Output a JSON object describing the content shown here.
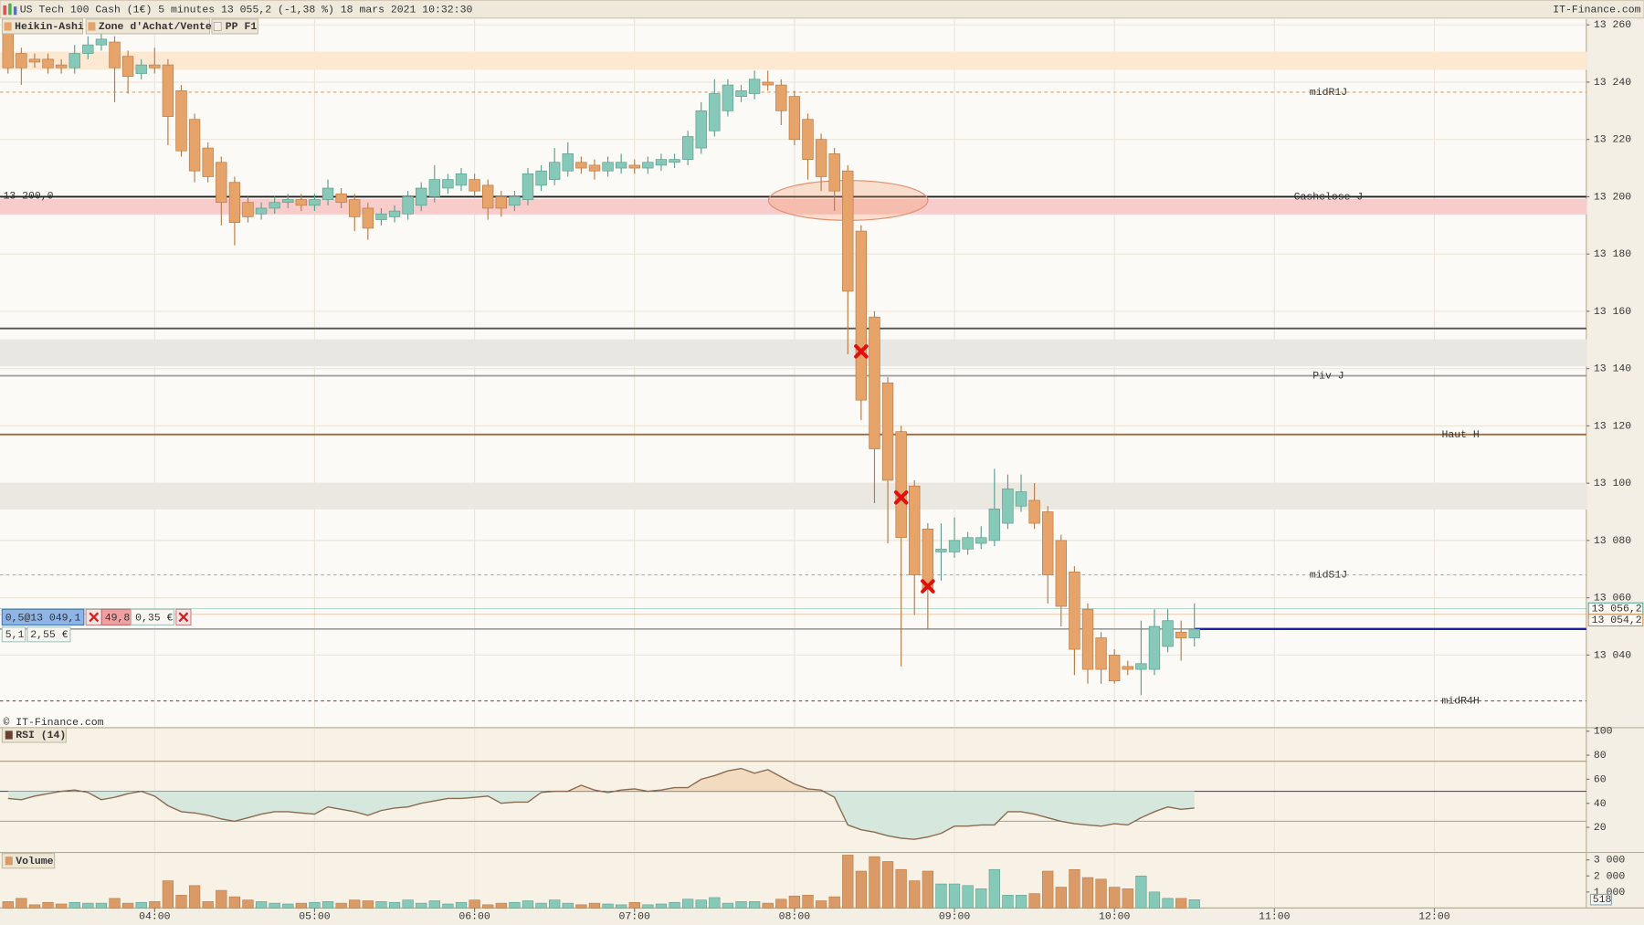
{
  "chart_data": [
    {
      "type": "candlestick",
      "title": "US Tech 100 Cash (1€) 5 minutes 13 055,2 (-1,38 %) 18 mars 2021 10:32:30",
      "source": "IT-Finance.com",
      "copyright": "© IT-Finance.com",
      "indicators": [
        "Heikin-Ashi",
        "Zone d'Achat/Vente",
        "PP F1"
      ],
      "up_color": "#86c9b9",
      "down_color": "#e6a46a",
      "x": [
        185,
        190,
        195,
        200,
        205,
        210,
        215,
        220,
        225,
        230,
        235,
        240,
        245,
        250,
        255,
        260,
        265,
        270,
        275,
        280,
        285,
        290,
        295,
        300,
        305,
        310,
        315,
        320,
        325,
        330,
        335,
        340,
        345,
        350,
        355,
        360,
        365,
        370,
        375,
        380,
        385,
        390,
        395,
        400,
        405,
        410,
        415,
        420,
        425,
        430,
        435,
        440,
        445,
        450,
        455,
        460,
        465,
        470,
        475,
        480,
        485,
        490,
        495,
        500,
        505,
        510,
        515,
        520,
        525,
        530,
        535,
        540,
        545,
        550,
        555,
        560,
        565,
        570,
        575,
        580,
        585,
        590,
        595,
        600,
        605,
        610,
        615,
        620,
        625,
        630
      ],
      "open": [
        13257,
        13250,
        13248,
        13248,
        13246,
        13245,
        13250,
        13253,
        13254,
        13249,
        13243,
        13246,
        13246,
        13237,
        13227,
        13217,
        13212,
        13205,
        13198,
        13194,
        13196,
        13198,
        13199,
        13197,
        13199,
        13201,
        13199,
        13196,
        13192,
        13193,
        13194,
        13197,
        13200,
        13203,
        13204,
        13206,
        13204,
        13200,
        13197,
        13199,
        13204,
        13206,
        13209,
        13212,
        13211,
        13209,
        13210,
        13211,
        13210,
        13211,
        13212,
        13213,
        13217,
        13223,
        13230,
        13235,
        13236,
        13240,
        13239,
        13235,
        13227,
        13220,
        13215,
        13209,
        13188,
        13158,
        13135,
        13118,
        13099,
        13084,
        13076,
        13076,
        13077,
        13079,
        13080,
        13086,
        13092,
        13094,
        13090,
        13080,
        13069,
        13056,
        13046,
        13040,
        13036,
        13035,
        13035,
        13043,
        13048,
        13046
      ],
      "high": [
        13262,
        13252,
        13250,
        13250,
        13248,
        13253,
        13256,
        13257,
        13256,
        13251,
        13248,
        13252,
        13248,
        13239,
        13229,
        13219,
        13214,
        13207,
        13200,
        13198,
        13200,
        13201,
        13201,
        13201,
        13206,
        13203,
        13201,
        13198,
        13196,
        13197,
        13202,
        13205,
        13211,
        13208,
        13210,
        13208,
        13206,
        13202,
        13202,
        13210,
        13211,
        13217,
        13219,
        13214,
        13213,
        13214,
        13215,
        13213,
        13214,
        13215,
        13215,
        13223,
        13233,
        13241,
        13241,
        13239,
        13244,
        13244,
        13241,
        13237,
        13229,
        13222,
        13217,
        13211,
        13190,
        13160,
        13137,
        13120,
        13101,
        13086,
        13086,
        13088,
        13083,
        13085,
        13105,
        13103,
        13103,
        13100,
        13092,
        13082,
        13071,
        13058,
        13048,
        13042,
        13038,
        13052,
        13056,
        13056,
        13052,
        13058
      ],
      "low": [
        13243,
        13239,
        13245,
        13243,
        13243,
        13243,
        13248,
        13251,
        13233,
        13236,
        13241,
        13243,
        13218,
        13214,
        13205,
        13205,
        13190,
        13183,
        13191,
        13192,
        13194,
        13196,
        13195,
        13195,
        13197,
        13196,
        13188,
        13185,
        13190,
        13191,
        13192,
        13195,
        13198,
        13201,
        13202,
        13200,
        13192,
        13193,
        13195,
        13197,
        13202,
        13204,
        13207,
        13208,
        13206,
        13207,
        13208,
        13208,
        13208,
        13209,
        13210,
        13211,
        13215,
        13221,
        13228,
        13233,
        13234,
        13237,
        13225,
        13218,
        13206,
        13202,
        13195,
        13145,
        13122,
        13093,
        13079,
        13036,
        13054,
        13049,
        13066,
        13074,
        13075,
        13077,
        13078,
        13084,
        13090,
        13084,
        13058,
        13050,
        13033,
        13030,
        13030,
        13030,
        13033,
        13026,
        13033,
        13041,
        13038,
        13043
      ],
      "close": [
        13245,
        13245,
        13247,
        13245,
        13245,
        13250,
        13253,
        13255,
        13245,
        13242,
        13246,
        13245,
        13228,
        13216,
        13209,
        13207,
        13198,
        13191,
        13193,
        13196,
        13198,
        13199,
        13197,
        13199,
        13203,
        13198,
        13193,
        13189,
        13194,
        13195,
        13200,
        13203,
        13206,
        13206,
        13208,
        13202,
        13196,
        13196,
        13200,
        13208,
        13209,
        13212,
        13215,
        13210,
        13209,
        13212,
        13212,
        13210,
        13212,
        13213,
        13213,
        13221,
        13230,
        13236,
        13239,
        13237,
        13241,
        13239,
        13230,
        13220,
        13213,
        13207,
        13202,
        13167,
        13129,
        13112,
        13101,
        13081,
        13068,
        13063,
        13077,
        13080,
        13081,
        13081,
        13091,
        13098,
        13097,
        13086,
        13068,
        13057,
        13042,
        13035,
        13035,
        13031,
        13035,
        13037,
        13050,
        13052,
        13046,
        13049
      ],
      "xlim": [
        182,
        777
      ],
      "ylim": [
        13015,
        13262
      ],
      "yticks": [
        {
          "value": 13040,
          "label": "13 040"
        },
        {
          "value": 13060,
          "label": "13 060"
        },
        {
          "value": 13080,
          "label": "13 080"
        },
        {
          "value": 13100,
          "label": "13 100"
        },
        {
          "value": 13120,
          "label": "13 120"
        },
        {
          "value": 13140,
          "label": "13 140"
        },
        {
          "value": 13160,
          "label": "13 160"
        },
        {
          "value": 13180,
          "label": "13 180"
        },
        {
          "value": 13200,
          "label": "13 200"
        },
        {
          "value": 13220,
          "label": "13 220"
        },
        {
          "value": 13240,
          "label": "13 240"
        },
        {
          "value": 13260,
          "label": "13 260"
        }
      ],
      "grid": true,
      "zones": [
        {
          "from": 13244.5,
          "to": 13250.5,
          "color": "#fde8d2"
        },
        {
          "from": 13194,
          "to": 13199,
          "color": "#f9cccc"
        },
        {
          "from": 13141,
          "to": 13150,
          "color": "#e9e7e3"
        },
        {
          "from": 13091,
          "to": 13100,
          "color": "#ebe8e2"
        }
      ],
      "levels": [
        {
          "value": 13200,
          "label": "Cashclose J",
          "value_label": "13 200,0",
          "color": "#222222"
        },
        {
          "value": 13154,
          "color": "#555555"
        },
        {
          "value": 13137.5,
          "label": "Piv J",
          "color": "#9a9a9a"
        },
        {
          "value": 13117,
          "label": "Haut H",
          "color": "#a8683a"
        },
        {
          "value": 13236.5,
          "label": "midR1J",
          "color": "#d9a070",
          "dashed": true
        },
        {
          "value": 13068,
          "label": "midS1J",
          "color": "#8fb8c4",
          "dashed": true
        },
        {
          "value": 13024,
          "label": "midR4H",
          "color": "#b84040",
          "dashed": true
        }
      ],
      "markers": {
        "x": [
          505,
          520,
          530
        ],
        "y": [
          13146,
          13095,
          13064
        ],
        "color": "#e01010"
      },
      "last_prices": [
        {
          "value": 13056.2,
          "label": "13 056,2",
          "color": "#3f9a88"
        },
        {
          "value": 13054.2,
          "label": "13 054,2",
          "color": "#d07a30"
        }
      ],
      "position_line": {
        "value": 13049.1,
        "color": "#2020a0"
      }
    },
    {
      "type": "line",
      "title": "RSI (14)",
      "color": "#8a6a50",
      "values": [
        44,
        43,
        46,
        48,
        50,
        51,
        49,
        43,
        45,
        48,
        50,
        46,
        38,
        33,
        32,
        30,
        27,
        25,
        28,
        31,
        33,
        33,
        32,
        31,
        37,
        35,
        33,
        30,
        34,
        36,
        37,
        40,
        42,
        44,
        44,
        45,
        46,
        40,
        41,
        41,
        49,
        50,
        50,
        55,
        51,
        49,
        51,
        52,
        50,
        51,
        53,
        53,
        60,
        63,
        67,
        69,
        65,
        68,
        62,
        56,
        52,
        51,
        45,
        22,
        18,
        16,
        13,
        11,
        10,
        12,
        15,
        21,
        21,
        22,
        22,
        33,
        33,
        31,
        28,
        25,
        23,
        22,
        21,
        23,
        22,
        28,
        33,
        37,
        35,
        36
      ],
      "ylim": [
        0,
        102
      ],
      "yticks": [
        20,
        40,
        60,
        80,
        100
      ],
      "grid": false,
      "bands": [
        {
          "value": 25,
          "color": "#7cc0b0"
        },
        {
          "value": 50,
          "color": "#555555"
        },
        {
          "value": 75,
          "color": "#d99a60"
        }
      ],
      "fill_above": "#f1dcc0",
      "fill_below": "#d6e8de"
    },
    {
      "type": "bar",
      "title": "Volume",
      "values": [
        400,
        600,
        200,
        350,
        250,
        350,
        300,
        300,
        600,
        300,
        350,
        400,
        1700,
        800,
        1400,
        400,
        1100,
        700,
        500,
        400,
        300,
        250,
        300,
        350,
        400,
        300,
        500,
        450,
        400,
        350,
        500,
        300,
        450,
        250,
        350,
        500,
        200,
        300,
        350,
        450,
        300,
        500,
        300,
        200,
        300,
        250,
        200,
        350,
        200,
        250,
        350,
        550,
        500,
        650,
        300,
        400,
        400,
        300,
        550,
        750,
        800,
        450,
        700,
        3300,
        2300,
        3200,
        2900,
        2400,
        1700,
        2300,
        1500,
        1500,
        1400,
        1200,
        2400,
        800,
        800,
        900,
        2300,
        1300,
        2400,
        1900,
        1800,
        1300,
        1200,
        2000,
        1000,
        600,
        600,
        518
      ],
      "up_color": "#86c9b9",
      "down_color": "#d99a68",
      "ylim": [
        0,
        3400
      ],
      "yticks": [
        {
          "value": 1000,
          "label": "1 000"
        },
        {
          "value": 2000,
          "label": "2 000"
        },
        {
          "value": 3000,
          "label": "3 000"
        }
      ],
      "grid": false,
      "xticks": [
        {
          "value": 240,
          "label": "04:00"
        },
        {
          "value": 300,
          "label": "05:00"
        },
        {
          "value": 360,
          "label": "06:00"
        },
        {
          "value": 420,
          "label": "07:00"
        },
        {
          "value": 480,
          "label": "08:00"
        },
        {
          "value": 540,
          "label": "09:00"
        },
        {
          "value": 600,
          "label": "10:00"
        },
        {
          "value": 660,
          "label": "11:00"
        },
        {
          "value": 720,
          "label": "12:00"
        }
      ]
    }
  ],
  "position": {
    "order": "0,5@13 049,1",
    "gain": "49,8",
    "fee": "0,35 €",
    "size": "5,1",
    "margin": "2,55 €"
  }
}
